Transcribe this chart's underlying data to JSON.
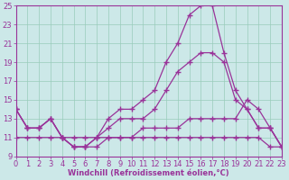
{
  "background_color": "#cce8e8",
  "grid_color": "#99ccbb",
  "line_color": "#993399",
  "xlim": [
    0,
    23
  ],
  "ylim": [
    9,
    25
  ],
  "xlabel": "Windchill (Refroidissement éolien,°C)",
  "xlabel_fontsize": 6,
  "xticks": [
    0,
    1,
    2,
    3,
    4,
    5,
    6,
    7,
    8,
    9,
    10,
    11,
    12,
    13,
    14,
    15,
    16,
    17,
    18,
    19,
    20,
    21,
    22,
    23
  ],
  "yticks": [
    9,
    11,
    13,
    15,
    17,
    19,
    21,
    23,
    25
  ],
  "tick_fontsize": 6,
  "series": [
    [
      11,
      11,
      11,
      11,
      11,
      11,
      11,
      11,
      11,
      11,
      11,
      11,
      11,
      11,
      11,
      11,
      11,
      11,
      11,
      11,
      11,
      11,
      10,
      10
    ],
    [
      14,
      12,
      12,
      13,
      11,
      10,
      10,
      10,
      11,
      11,
      11,
      12,
      12,
      12,
      12,
      13,
      13,
      13,
      13,
      13,
      15,
      14,
      12,
      10
    ],
    [
      14,
      12,
      12,
      13,
      11,
      10,
      10,
      11,
      12,
      13,
      13,
      13,
      14,
      16,
      18,
      19,
      20,
      20,
      19,
      15,
      14,
      12,
      12,
      10
    ],
    [
      14,
      12,
      12,
      13,
      11,
      10,
      10,
      11,
      13,
      14,
      14,
      15,
      16,
      19,
      21,
      24,
      25,
      25,
      20,
      16,
      14,
      12,
      12,
      10
    ]
  ]
}
